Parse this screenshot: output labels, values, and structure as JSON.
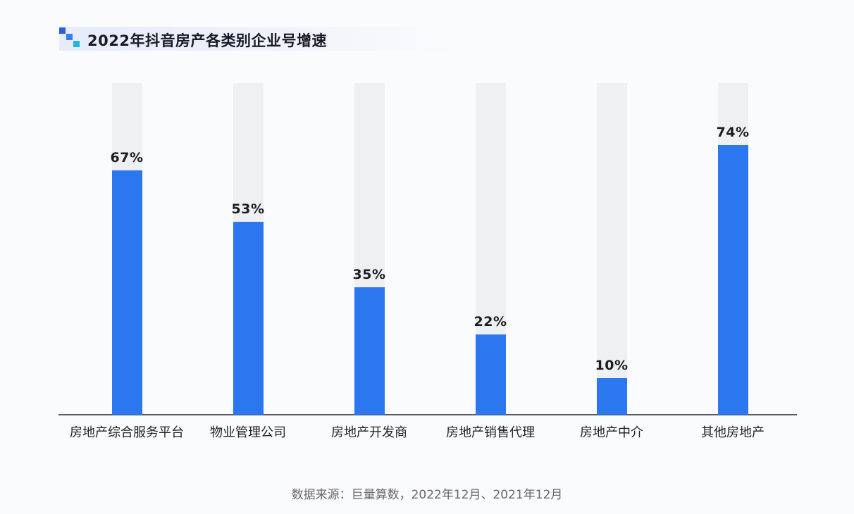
{
  "header": {
    "title": "2022年抖音房产各类别企业号增速",
    "icon": "stepped-squares-icon"
  },
  "footer": {
    "source": "数据来源：巨量算数，2022年12月、2021年12月"
  },
  "colors": {
    "bar_fill": "#2b77f0",
    "bar_track": "#eff0f2",
    "axis": "#5a5a60",
    "background": "#fafbfd",
    "icon_squares": [
      "#2f5fe0",
      "#3b7cf0",
      "#1fb6d8"
    ]
  },
  "chart_data": {
    "type": "bar",
    "title": "2022年抖音房产各类别企业号增速",
    "categories": [
      "房地产综合服务平台",
      "物业管理公司",
      "房地产开发商",
      "房地产销售代理",
      "房地产中介",
      "其他房地产"
    ],
    "values": [
      67,
      53,
      35,
      22,
      10,
      74
    ],
    "labels": [
      "67%",
      "53%",
      "35%",
      "22%",
      "10%",
      "74%"
    ],
    "unit": "%",
    "xlabel": "",
    "ylabel": "",
    "ylim": [
      0,
      91
    ],
    "grid": false,
    "legend": null,
    "source": "数据来源：巨量算数，2022年12月、2021年12月"
  }
}
